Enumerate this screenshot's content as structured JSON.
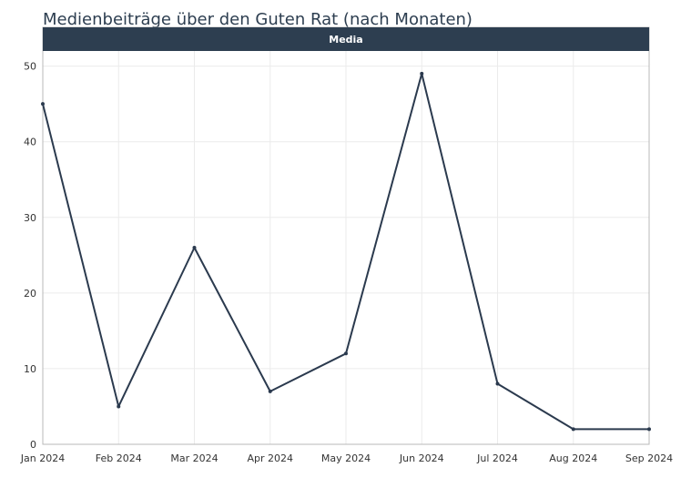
{
  "chart_data": {
    "type": "line",
    "title": "Medienbeiträge über den Guten Rat (nach Monaten)",
    "facet_label": "Media",
    "x": [
      "Jan 2024",
      "Feb 2024",
      "Mar 2024",
      "Apr 2024",
      "May 2024",
      "Jun 2024",
      "Jul 2024",
      "Aug 2024",
      "Sep 2024"
    ],
    "series": [
      {
        "values": [
          45,
          5,
          26,
          7,
          12,
          49,
          8,
          2,
          2
        ]
      }
    ],
    "yticks": [
      0,
      10,
      20,
      30,
      40,
      50
    ],
    "ylim": [
      0,
      52
    ],
    "grid": true,
    "colors": {
      "line": "#2b3a4e",
      "strip": "#2d3e50",
      "strip_text": "#ffffff",
      "grid": "#ebebeb",
      "panel_border": "#b8b8b8",
      "text": "#333333",
      "title": "#2d3e50"
    }
  }
}
